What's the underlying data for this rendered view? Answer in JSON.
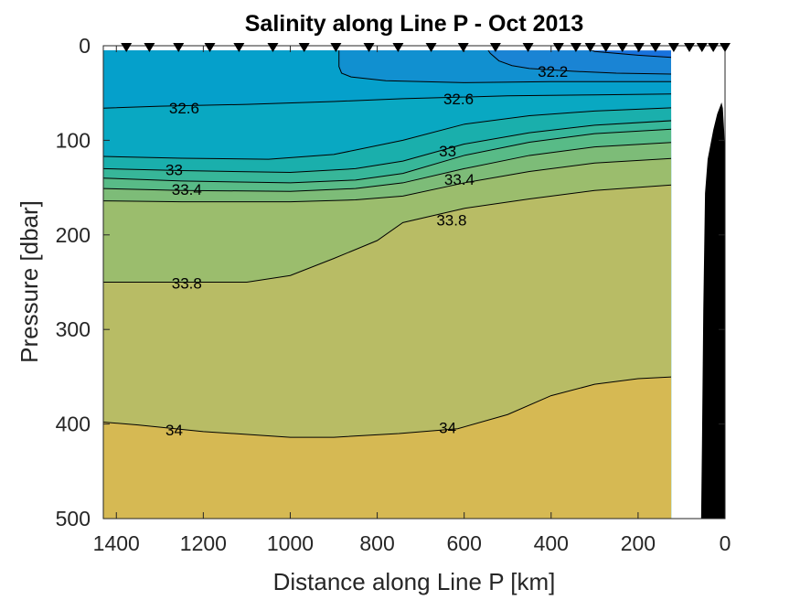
{
  "chart_data": {
    "type": "contour",
    "title": "Salinity along Line P - Oct 2013",
    "xlabel": "Distance along Line P [km]",
    "ylabel": "Pressure [dbar]",
    "xlim": [
      1430,
      0
    ],
    "ylim": [
      0,
      500
    ],
    "x_reversed": true,
    "y_reversed": true,
    "xticks": [
      1400,
      1200,
      1000,
      800,
      600,
      400,
      200,
      0
    ],
    "yticks": [
      0,
      100,
      200,
      300,
      400,
      500
    ],
    "data_extent_km": [
      124,
      1430
    ],
    "base_color": "#1872dd",
    "contours": [
      {
        "level": 32.0,
        "color_below": "#1a84d4",
        "points": [
          [
            335,
            0
          ],
          [
            300,
            6
          ],
          [
            200,
            10
          ],
          [
            124,
            12.6
          ]
        ]
      },
      {
        "level": 32.2,
        "color_below": "#1190d0",
        "points": [
          [
            552,
            0
          ],
          [
            540,
            8
          ],
          [
            520,
            16
          ],
          [
            490,
            21
          ],
          [
            450,
            24
          ],
          [
            350,
            27
          ],
          [
            250,
            29
          ],
          [
            124,
            30
          ]
        ]
      },
      {
        "level": 32.4,
        "color_below": "#05a0cb",
        "points": [
          [
            888,
            0
          ],
          [
            888,
            22
          ],
          [
            882,
            29
          ],
          [
            860,
            33
          ],
          [
            780,
            37
          ],
          [
            600,
            39
          ],
          [
            400,
            38
          ],
          [
            124,
            38
          ]
        ]
      },
      {
        "level": 32.6,
        "color_below": "#09a8c2",
        "points": [
          [
            1430,
            66
          ],
          [
            1300,
            64
          ],
          [
            1100,
            62
          ],
          [
            900,
            59
          ],
          [
            741,
            56
          ],
          [
            500,
            53
          ],
          [
            300,
            52
          ],
          [
            124,
            51
          ]
        ]
      },
      {
        "level": 32.8,
        "color_below": "#1aafac",
        "points": [
          [
            1430,
            117
          ],
          [
            1250,
            119
          ],
          [
            1050,
            120
          ],
          [
            900,
            115
          ],
          [
            741,
            100
          ],
          [
            600,
            83
          ],
          [
            450,
            74
          ],
          [
            300,
            69
          ],
          [
            124,
            65.5
          ]
        ]
      },
      {
        "level": 33.0,
        "color_below": "#37b699",
        "points": [
          [
            1430,
            130
          ],
          [
            1250,
            132
          ],
          [
            1000,
            134
          ],
          [
            850,
            130
          ],
          [
            741,
            122
          ],
          [
            600,
            104
          ],
          [
            450,
            92
          ],
          [
            300,
            84
          ],
          [
            124,
            79
          ]
        ]
      },
      {
        "level": 33.2,
        "color_below": "#58bb87",
        "points": [
          [
            1430,
            140
          ],
          [
            1250,
            143
          ],
          [
            1000,
            145
          ],
          [
            850,
            142
          ],
          [
            741,
            135
          ],
          [
            600,
            116
          ],
          [
            450,
            102
          ],
          [
            300,
            93
          ],
          [
            124,
            88
          ]
        ]
      },
      {
        "level": 33.4,
        "color_below": "#7dbc78",
        "points": [
          [
            1430,
            151
          ],
          [
            1250,
            153
          ],
          [
            1000,
            154
          ],
          [
            850,
            151
          ],
          [
            741,
            145
          ],
          [
            600,
            130
          ],
          [
            450,
            116
          ],
          [
            300,
            107
          ],
          [
            124,
            102
          ]
        ]
      },
      {
        "level": 33.6,
        "color_below": "#9bbd6d",
        "points": [
          [
            1430,
            164
          ],
          [
            1250,
            165
          ],
          [
            1000,
            165
          ],
          [
            850,
            163
          ],
          [
            741,
            159
          ],
          [
            600,
            145
          ],
          [
            450,
            133
          ],
          [
            300,
            124
          ],
          [
            124,
            119
          ]
        ]
      },
      {
        "level": 33.8,
        "color_below": "#b8bc65",
        "points": [
          [
            1430,
            250
          ],
          [
            1100,
            250
          ],
          [
            1000,
            243
          ],
          [
            900,
            225
          ],
          [
            800,
            206
          ],
          [
            741,
            187
          ],
          [
            600,
            172
          ],
          [
            450,
            162
          ],
          [
            300,
            153
          ],
          [
            124,
            147
          ]
        ]
      },
      {
        "level": 34.0,
        "color_below": "#d6b953",
        "points": [
          [
            1430,
            398
          ],
          [
            1350,
            401
          ],
          [
            1200,
            408
          ],
          [
            1000,
            414
          ],
          [
            900,
            414
          ],
          [
            750,
            410
          ],
          [
            615,
            405
          ],
          [
            500,
            390
          ],
          [
            400,
            370
          ],
          [
            300,
            358
          ],
          [
            200,
            352
          ],
          [
            124,
            350
          ]
        ]
      }
    ],
    "contour_labels": [
      {
        "text": "32.2",
        "x": 396,
        "y": 27
      },
      {
        "text": "32.6",
        "x": 1244,
        "y": 66
      },
      {
        "text": "32.6",
        "x": 613,
        "y": 56
      },
      {
        "text": "33",
        "x": 1267,
        "y": 131
      },
      {
        "text": "33",
        "x": 638,
        "y": 111
      },
      {
        "text": "33.4",
        "x": 1238,
        "y": 152
      },
      {
        "text": "33.4",
        "x": 611,
        "y": 141
      },
      {
        "text": "33.8",
        "x": 1238,
        "y": 251
      },
      {
        "text": "33.8",
        "x": 629,
        "y": 184
      },
      {
        "text": "34",
        "x": 1267,
        "y": 406
      },
      {
        "text": "34",
        "x": 638,
        "y": 404
      }
    ],
    "stations_km": [
      1377,
      1324,
      1257,
      1185,
      1118,
      1040,
      968,
      895,
      819,
      752,
      676,
      602,
      528,
      453,
      383,
      343,
      310,
      274,
      236,
      198,
      160,
      118,
      82,
      53,
      27,
      0
    ],
    "bathymetry": [
      [
        55,
        500
      ],
      [
        53,
        420
      ],
      [
        50,
        280
      ],
      [
        46,
        156
      ],
      [
        40,
        120
      ],
      [
        27,
        89
      ],
      [
        18,
        72
      ],
      [
        8,
        60
      ],
      [
        5,
        66
      ],
      [
        2,
        90
      ],
      [
        0,
        116
      ],
      [
        0,
        500
      ]
    ],
    "bathymetry_color": "#000000"
  }
}
